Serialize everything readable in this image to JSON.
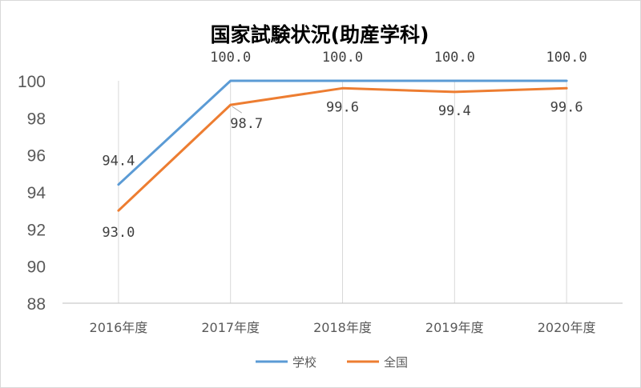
{
  "chart_data": {
    "type": "line",
    "title": "国家試験状況(助産学科)",
    "categories": [
      "2016年度",
      "2017年度",
      "2018年度",
      "2019年度",
      "2020年度"
    ],
    "series": [
      {
        "name": "学校",
        "values": [
          94.4,
          100.0,
          100.0,
          100.0,
          100.0
        ],
        "labels": [
          "94.4",
          "100.0",
          "100.0",
          "100.0",
          "100.0"
        ],
        "color": "#5b9bd5"
      },
      {
        "name": "全国",
        "values": [
          93.0,
          98.7,
          99.6,
          99.4,
          99.6
        ],
        "labels": [
          "93.0",
          "98.7",
          "99.6",
          "99.4",
          "99.6"
        ],
        "color": "#ed7d31"
      }
    ],
    "ylim": [
      88,
      100
    ],
    "yticks": [
      88,
      90,
      92,
      94,
      96,
      98,
      100
    ],
    "grid": "vertical",
    "legend": "bottom"
  }
}
